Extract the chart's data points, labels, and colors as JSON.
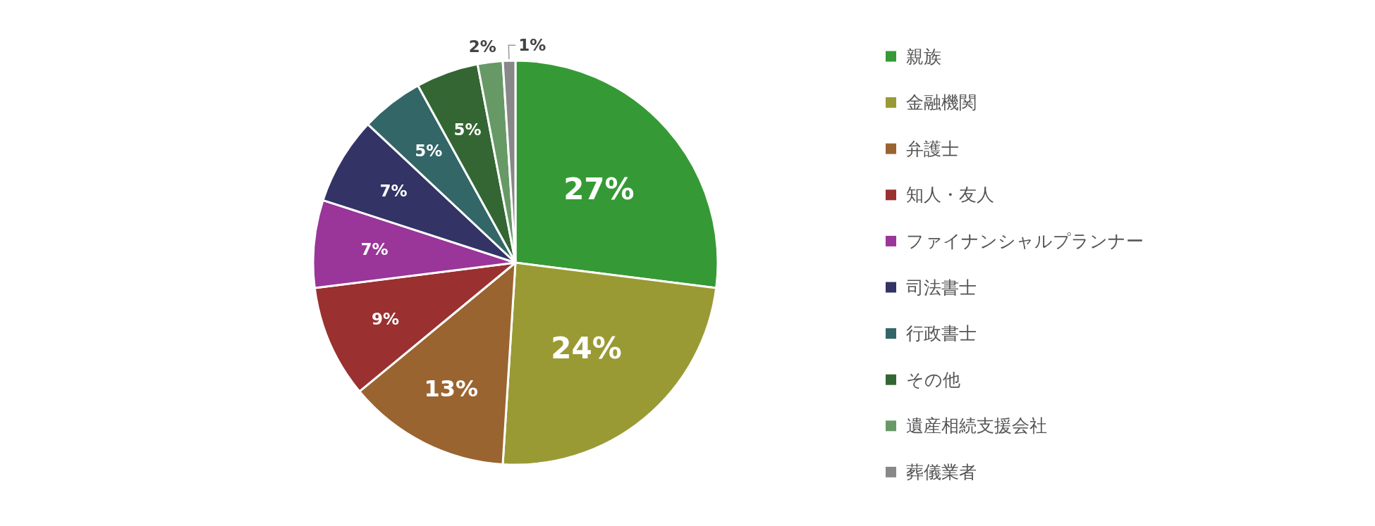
{
  "chart_data": {
    "type": "pie",
    "categories": [
      "親族",
      "金融機関",
      "弁護士",
      "知人・友人",
      "ファイナンシャルプランナー",
      "司法書士",
      "行政書士",
      "その他",
      "遺産相続支援会社",
      "葬儀業者"
    ],
    "values": [
      27,
      24,
      13,
      9,
      7,
      7,
      5,
      5,
      2,
      1
    ],
    "value_labels": [
      "27%",
      "24%",
      "13%",
      "9%",
      "7%",
      "7%",
      "5%",
      "5%",
      "2%",
      "1%"
    ],
    "colors": [
      "#359a35",
      "#9a9a35",
      "#9a6430",
      "#9a3030",
      "#9a359a",
      "#333366",
      "#336666",
      "#336633",
      "#669966",
      "#888888"
    ],
    "legend": "right"
  }
}
